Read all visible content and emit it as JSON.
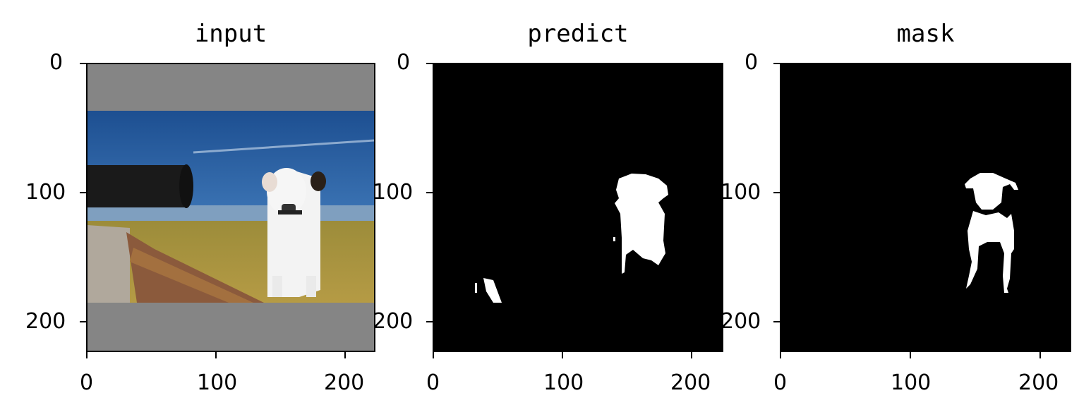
{
  "chart_data": [
    {
      "type": "image",
      "title": "input",
      "xlim": [
        0,
        224
      ],
      "ylim": [
        224,
        0
      ],
      "x_ticks": [
        "0",
        "100",
        "200"
      ],
      "y_ticks": [
        "0",
        "100",
        "200"
      ],
      "content": "photo of a white dog beside a cannon on a grassy wall by the water, letterboxed with gray bars"
    },
    {
      "type": "image",
      "title": "predict",
      "xlim": [
        0,
        224
      ],
      "ylim": [
        224,
        0
      ],
      "x_ticks": [
        "0",
        "100",
        "200"
      ],
      "y_ticks": [
        "0",
        "100",
        "200"
      ],
      "content": "binary segmentation prediction (white dog region on black, plus a small false-positive blob)"
    },
    {
      "type": "image",
      "title": "mask",
      "xlim": [
        0,
        224
      ],
      "ylim": [
        224,
        0
      ],
      "x_ticks": [
        "0",
        "100",
        "200"
      ],
      "y_ticks": [
        "0",
        "100",
        "200"
      ],
      "content": "ground-truth binary mask of the dog (white on black)"
    }
  ]
}
